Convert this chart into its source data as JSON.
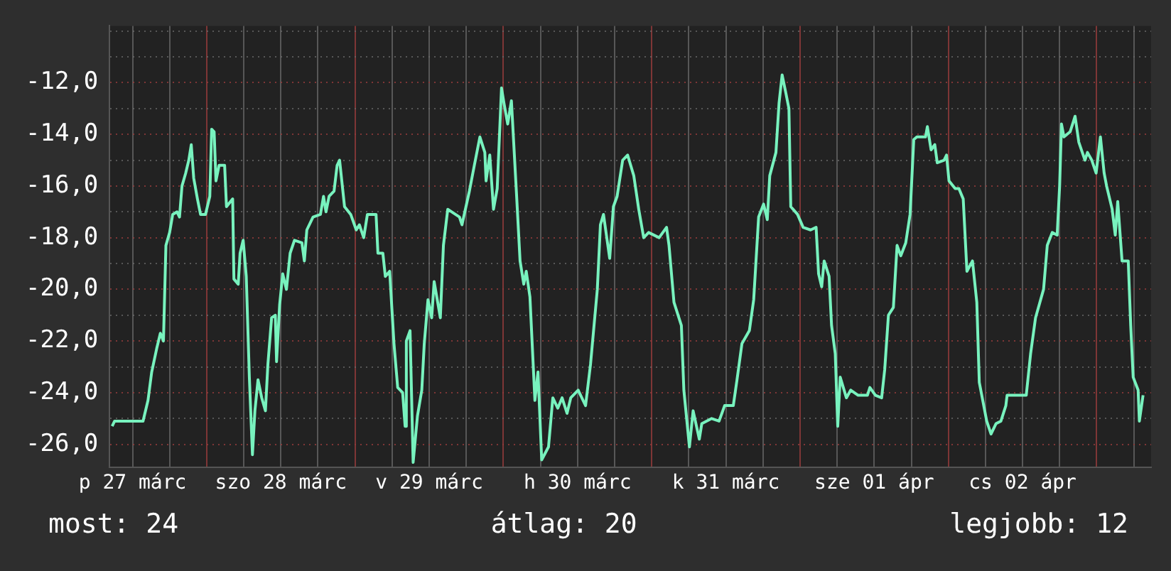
{
  "chart_data": {
    "type": "line",
    "x": [
      "--03-27T08:42",
      "--03-27T09:06",
      "--03-27T13:42",
      "--03-27T14:30",
      "--03-27T15:06",
      "--03-27T15:54",
      "--03-27T16:30",
      "--03-27T17:00",
      "--03-27T17:24",
      "--03-27T18:00",
      "--03-27T18:30",
      "--03-27T19:12",
      "--03-27T19:36",
      "--03-27T20:00",
      "--03-27T20:36",
      "--03-27T21:06",
      "--03-27T21:30",
      "--03-27T21:54",
      "--03-27T22:30",
      "--03-27T23:00",
      "--03-27T23:48",
      "--03-28T00:30",
      "--03-28T00:48",
      "--03-28T01:12",
      "--03-28T01:30",
      "--03-28T02:00",
      "--03-28T02:54",
      "--03-28T03:12",
      "--03-28T04:12",
      "--03-28T04:24",
      "--03-28T05:06",
      "--03-28T05:24",
      "--03-28T05:54",
      "--03-28T06:24",
      "--03-28T06:54",
      "--03-28T07:24",
      "--03-28T07:48",
      "--03-28T08:18",
      "--03-28T08:54",
      "--03-28T09:30",
      "--03-28T09:54",
      "--03-28T10:30",
      "--03-28T11:06",
      "--03-28T11:18",
      "--03-28T11:48",
      "--03-28T12:18",
      "--03-28T12:54",
      "--03-28T13:30",
      "--03-28T14:12",
      "--03-28T15:24",
      "--03-28T15:48",
      "--03-28T16:12",
      "--03-28T17:12",
      "--03-28T18:24",
      "--03-28T18:54",
      "--03-28T19:18",
      "--03-28T19:48",
      "--03-28T20:36",
      "--03-28T21:06",
      "--03-28T21:30",
      "--03-28T22:18",
      "--03-28T23:18",
      "--03-29T00:12",
      "--03-29T00:42",
      "--03-29T01:24",
      "--03-29T02:00",
      "--03-29T03:24",
      "--03-29T03:42",
      "--03-29T04:30",
      "--03-29T04:54",
      "--03-29T05:36",
      "--03-29T06:18",
      "--03-29T06:54",
      "--03-29T07:42",
      "--03-29T08:06",
      "--03-29T08:18",
      "--03-29T08:54",
      "--03-29T09:24",
      "--03-29T10:06",
      "--03-29T10:48",
      "--03-29T11:12",
      "--03-29T11:48",
      "--03-29T12:24",
      "--03-29T12:48",
      "--03-29T13:48",
      "--03-29T14:18",
      "--03-29T15:00",
      "--03-29T16:54",
      "--03-29T17:18",
      "--03-29T18:30",
      "--03-29T19:18",
      "--03-29T20:12",
      "--03-29T21:00",
      "--03-29T21:12",
      "--03-29T21:48",
      "--03-29T22:24",
      "--03-29T23:00",
      "--03-29T23:42",
      "--03-30T00:06",
      "--03-30T00:42",
      "--03-30T01:18",
      "--03-30T02:06",
      "--03-30T02:42",
      "--03-30T03:18",
      "--03-30T03:42",
      "--03-30T04:18",
      "--03-30T05:06",
      "--03-30T05:36",
      "--03-30T06:12",
      "--03-30T07:18",
      "--03-30T08:00",
      "--03-30T08:48",
      "--03-30T09:30",
      "--03-30T10:18",
      "--03-30T10:54",
      "--03-30T12:06",
      "--03-30T13:18",
      "--03-30T14:06",
      "--03-30T15:12",
      "--03-30T15:42",
      "--03-30T16:12",
      "--03-30T17:12",
      "--03-30T17:48",
      "--03-30T18:24",
      "--03-30T19:18",
      "--03-30T20:06",
      "--03-30T21:06",
      "--03-30T21:54",
      "--03-30T22:42",
      "--03-30T23:30",
      "--03-31T01:12",
      "--03-31T02:24",
      "--03-31T02:48",
      "--03-31T03:36",
      "--03-31T04:48",
      "--03-31T05:12",
      "--03-31T06:06",
      "--03-31T06:42",
      "--03-31T07:42",
      "--03-31T08:06",
      "--03-31T09:42",
      "--03-31T10:54",
      "--03-31T11:48",
      "--03-31T13:12",
      "--03-31T13:48",
      "--03-31T14:36",
      "--03-31T15:48",
      "--03-31T16:30",
      "--03-31T17:18",
      "--03-31T18:06",
      "--03-31T18:42",
      "--03-31T19:06",
      "--03-31T20:06",
      "--03-31T20:36",
      "--03-31T21:06",
      "--03-31T21:42",
      "--03-31T22:12",
      "--03-31T22:30",
      "--03-31T23:36",
      "--04-01T00:30",
      "--04-01T01:42",
      "--04-01T02:36",
      "--04-01T03:00",
      "--04-01T03:30",
      "--04-01T03:54",
      "--04-01T04:42",
      "--04-01T05:06",
      "--04-01T05:42",
      "--04-01T06:06",
      "--04-01T06:30",
      "--04-01T07:30",
      "--04-01T08:12",
      "--04-01T09:24",
      "--04-01T10:54",
      "--04-01T11:18",
      "--04-01T12:12",
      "--04-01T13:12",
      "--04-01T13:42",
      "--04-01T14:18",
      "--04-01T15:06",
      "--04-01T15:42",
      "--04-01T16:18",
      "--04-01T17:06",
      "--04-01T17:48",
      "--04-01T18:24",
      "--04-01T18:54",
      "--04-01T20:18",
      "--04-01T20:36",
      "--04-01T21:12",
      "--04-01T21:48",
      "--04-01T22:12",
      "--04-01T23:18",
      "--04-01T23:42",
      "--04-02T00:06",
      "--04-02T01:06",
      "--04-02T01:42",
      "--04-02T02:24",
      "--04-02T03:00",
      "--04-02T03:54",
      "--04-02T04:36",
      "--04-02T05:00",
      "--04-02T05:48",
      "--04-02T06:12",
      "--04-02T06:54",
      "--04-02T07:42",
      "--04-02T08:30",
      "--04-02T09:18",
      "--04-02T09:30",
      "--04-02T12:36",
      "--04-02T13:18",
      "--04-02T14:06",
      "--04-02T15:24",
      "--04-02T16:00",
      "--04-02T16:48",
      "--04-02T17:36",
      "--04-02T18:00",
      "--04-02T18:18",
      "--04-02T18:42",
      "--04-02T19:42",
      "--04-02T20:30",
      "--04-02T21:06",
      "--04-02T22:06",
      "--04-02T22:30",
      "--04-02T23:12",
      "--04-02T23:54",
      "--04-03T00:36",
      "--04-03T01:12",
      "--04-03T01:36",
      "--04-03T02:30",
      "--04-03T03:00",
      "--04-03T03:24",
      "--04-03T04:06",
      "--04-03T05:06",
      "--04-03T05:30",
      "--04-03T05:54",
      "--04-03T06:42",
      "--04-03T06:54",
      "--04-03T07:30"
    ],
    "series": [
      {
        "color": "#78f2be",
        "values": [
          -25.3,
          -25.1,
          -25.1,
          -24.3,
          -23.2,
          -22.3,
          -21.7,
          -22.0,
          -18.3,
          -17.8,
          -17.1,
          -17.0,
          -17.2,
          -16.0,
          -15.5,
          -15.0,
          -14.4,
          -15.7,
          -16.5,
          -17.1,
          -17.1,
          -16.4,
          -13.8,
          -13.9,
          -15.8,
          -15.2,
          -15.2,
          -16.8,
          -16.5,
          -19.6,
          -19.8,
          -18.6,
          -18.1,
          -19.5,
          -23.4,
          -26.4,
          -24.7,
          -23.5,
          -24.2,
          -24.7,
          -22.9,
          -21.1,
          -21.0,
          -22.8,
          -20.6,
          -19.4,
          -20.0,
          -18.6,
          -18.1,
          -18.2,
          -18.9,
          -17.7,
          -17.2,
          -17.1,
          -16.4,
          -17.0,
          -16.4,
          -16.2,
          -15.2,
          -15.0,
          -16.8,
          -17.1,
          -17.7,
          -17.5,
          -18.0,
          -17.1,
          -17.1,
          -18.6,
          -18.6,
          -19.5,
          -19.3,
          -22.1,
          -23.8,
          -24.0,
          -25.3,
          -22.0,
          -21.6,
          -26.7,
          -24.9,
          -23.9,
          -22.1,
          -20.4,
          -21.1,
          -19.7,
          -21.1,
          -18.3,
          -16.9,
          -17.2,
          -17.5,
          -16.2,
          -15.2,
          -14.1,
          -14.7,
          -15.8,
          -14.8,
          -16.9,
          -16.1,
          -12.2,
          -12.8,
          -13.6,
          -12.7,
          -16.2,
          -18.9,
          -19.8,
          -19.3,
          -20.3,
          -24.3,
          -23.2,
          -26.6,
          -26.1,
          -24.2,
          -24.6,
          -24.2,
          -24.8,
          -24.2,
          -23.9,
          -24.5,
          -22.9,
          -20.0,
          -17.5,
          -17.1,
          -18.8,
          -16.8,
          -16.4,
          -15.0,
          -14.8,
          -15.6,
          -16.9,
          -18.0,
          -17.8,
          -18.0,
          -17.6,
          -18.3,
          -20.5,
          -21.4,
          -23.9,
          -26.1,
          -24.7,
          -25.8,
          -25.2,
          -25.0,
          -25.1,
          -24.5,
          -24.5,
          -23.5,
          -22.1,
          -21.6,
          -20.4,
          -17.2,
          -16.7,
          -17.3,
          -15.6,
          -14.7,
          -12.8,
          -11.7,
          -12.4,
          -13.0,
          -16.8,
          -17.1,
          -17.6,
          -17.7,
          -17.6,
          -19.4,
          -19.9,
          -18.9,
          -19.5,
          -21.4,
          -22.5,
          -25.3,
          -23.4,
          -24.2,
          -23.9,
          -24.1,
          -24.1,
          -23.8,
          -24.1,
          -24.2,
          -23.1,
          -21.0,
          -20.7,
          -18.3,
          -18.7,
          -18.2,
          -17.1,
          -14.2,
          -14.1,
          -14.1,
          -13.7,
          -14.6,
          -14.4,
          -15.1,
          -15.0,
          -14.8,
          -15.8,
          -16.1,
          -16.1,
          -16.5,
          -19.3,
          -18.9,
          -20.5,
          -23.6,
          -24.6,
          -25.1,
          -25.6,
          -25.2,
          -25.1,
          -24.5,
          -24.1,
          -24.1,
          -22.5,
          -21.1,
          -20.0,
          -18.3,
          -17.8,
          -17.9,
          -16.0,
          -13.6,
          -14.1,
          -13.9,
          -13.3,
          -14.3,
          -15.0,
          -14.7,
          -15.0,
          -15.5,
          -14.1,
          -15.5,
          -16.0,
          -16.9,
          -17.9,
          -16.6,
          -18.9,
          -18.9,
          -21.4,
          -23.4,
          -23.9,
          -25.1,
          -24.1
        ]
      }
    ],
    "xlim": [
      "--03-27T08:18",
      "--04-03T08:48"
    ],
    "xticks": [
      {
        "value": "--03-27T12:00",
        "label": "p 27 márc"
      },
      {
        "value": "--03-27T18:00",
        "label": null
      },
      {
        "value": "--03-28T00:00",
        "label": null
      },
      {
        "value": "--03-28T06:00",
        "label": null
      },
      {
        "value": "--03-28T12:00",
        "label": "szo 28 márc"
      },
      {
        "value": "--03-28T18:00",
        "label": null
      },
      {
        "value": "--03-29T00:00",
        "label": null
      },
      {
        "value": "--03-29T06:00",
        "label": null
      },
      {
        "value": "--03-29T12:00",
        "label": "v 29 márc"
      },
      {
        "value": "--03-29T18:00",
        "label": null
      },
      {
        "value": "--03-30T00:00",
        "label": null
      },
      {
        "value": "--03-30T06:00",
        "label": null
      },
      {
        "value": "--03-30T12:00",
        "label": "h 30 márc"
      },
      {
        "value": "--03-30T18:00",
        "label": null
      },
      {
        "value": "--03-31T00:00",
        "label": null
      },
      {
        "value": "--03-31T06:00",
        "label": null
      },
      {
        "value": "--03-31T12:00",
        "label": "k 31 márc"
      },
      {
        "value": "--03-31T18:00",
        "label": null
      },
      {
        "value": "--04-01T00:00",
        "label": null
      },
      {
        "value": "--04-01T06:00",
        "label": null
      },
      {
        "value": "--04-01T12:00",
        "label": "sze 01 ápr"
      },
      {
        "value": "--04-01T18:00",
        "label": null
      },
      {
        "value": "--04-02T00:00",
        "label": null
      },
      {
        "value": "--04-02T06:00",
        "label": null
      },
      {
        "value": "--04-02T12:00",
        "label": "cs 02 ápr"
      },
      {
        "value": "--04-02T18:00",
        "label": null
      },
      {
        "value": "--04-03T00:00",
        "label": null
      },
      {
        "value": "--04-03T06:00",
        "label": null
      }
    ],
    "ylim": [
      -26.9,
      -9.8
    ],
    "yticks": [
      {
        "value": -26,
        "label": "-26,0"
      },
      {
        "value": -25,
        "label": null
      },
      {
        "value": -24,
        "label": "-24,0"
      },
      {
        "value": -23,
        "label": null
      },
      {
        "value": -22,
        "label": "-22,0"
      },
      {
        "value": -21,
        "label": null
      },
      {
        "value": -20,
        "label": "-20,0"
      },
      {
        "value": -19,
        "label": null
      },
      {
        "value": -18,
        "label": "-18,0"
      },
      {
        "value": -17,
        "label": null
      },
      {
        "value": -16,
        "label": "-16,0"
      },
      {
        "value": -15,
        "label": null
      },
      {
        "value": -14,
        "label": "-14,0"
      },
      {
        "value": -13,
        "label": null
      },
      {
        "value": -12,
        "label": "-12,0"
      },
      {
        "value": -11,
        "label": null
      },
      {
        "value": -10,
        "label": null
      }
    ],
    "grid": true,
    "annotations": [
      "most: 24",
      "átlag: 20",
      "legjobb: 12"
    ]
  }
}
